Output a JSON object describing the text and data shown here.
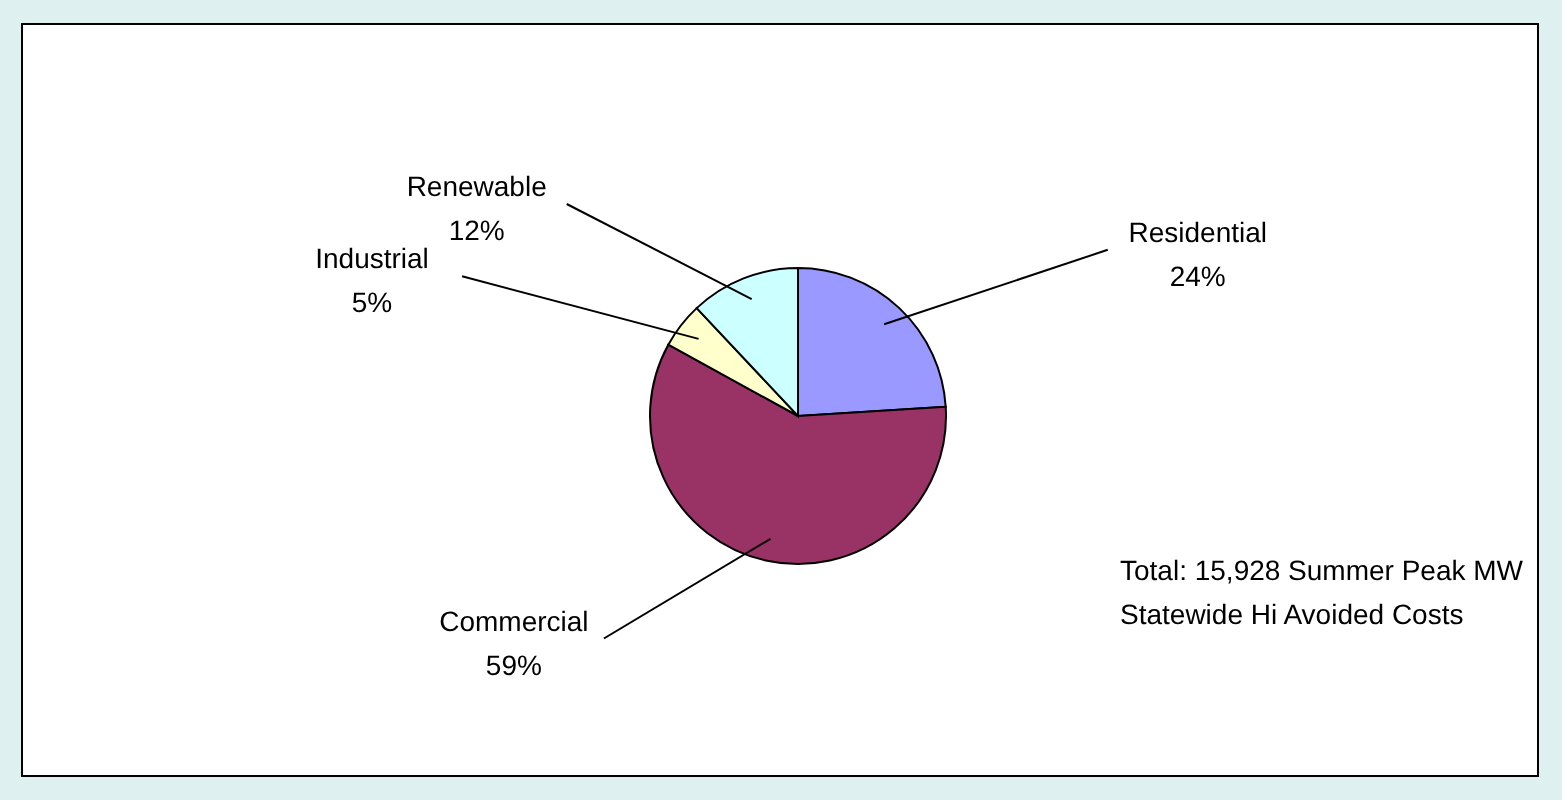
{
  "chart_data": {
    "type": "pie",
    "categories": [
      "Residential",
      "Commercial",
      "Industrial",
      "Renewable"
    ],
    "values": [
      24,
      59,
      5,
      12
    ],
    "colors": [
      "#9999ff",
      "#993366",
      "#ffffcc",
      "#ccffff"
    ],
    "value_labels": [
      "24%",
      "59%",
      "5%",
      "12%"
    ],
    "annotations": [
      "Total: 15,928 Summer Peak MW",
      "Statewide Hi Avoided Costs"
    ]
  }
}
